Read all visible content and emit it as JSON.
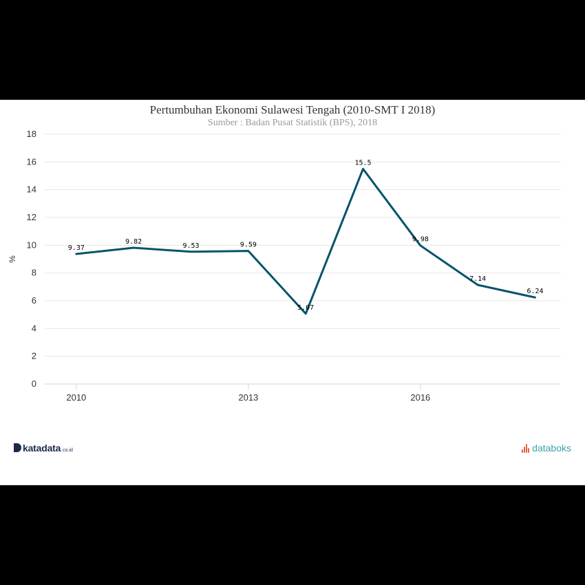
{
  "header": {
    "title": "Pertumbuhan Ekonomi Sulawesi Tengah (2010-SMT I 2018)",
    "subtitle": "Sumber : Badan Pusat Statistik (BPS), 2018"
  },
  "branding": {
    "left_name": "katadata",
    "left_suffix": ".co.id",
    "right_name": "databoks"
  },
  "colors": {
    "line": "#04536a",
    "grid": "#e6e6e6",
    "axis_text": "#333333"
  },
  "chart_data": {
    "type": "line",
    "title": "Pertumbuhan Ekonomi Sulawesi Tengah (2010-SMT I 2018)",
    "subtitle": "Sumber : Badan Pusat Statistik (BPS), 2018",
    "xlabel": "",
    "ylabel": "%",
    "x": [
      2010,
      2011,
      2012,
      2013,
      2014,
      2015,
      2016,
      2017,
      2018
    ],
    "x_tick_labels": [
      "2010",
      "2013",
      "2016"
    ],
    "x_tick_values": [
      2010,
      2013,
      2016
    ],
    "ylim": [
      0,
      18
    ],
    "y_ticks": [
      0,
      2,
      4,
      6,
      8,
      10,
      12,
      14,
      16,
      18
    ],
    "grid": true,
    "legend": "none",
    "series": [
      {
        "values": [
          9.37,
          9.82,
          9.53,
          9.59,
          5.07,
          15.5,
          9.98,
          7.14,
          6.24
        ],
        "labels": [
          "9.37",
          "9.82",
          "9.53",
          "9.59",
          "5.07",
          "15.5",
          "9.98",
          "7.14",
          "6.24"
        ]
      }
    ]
  }
}
